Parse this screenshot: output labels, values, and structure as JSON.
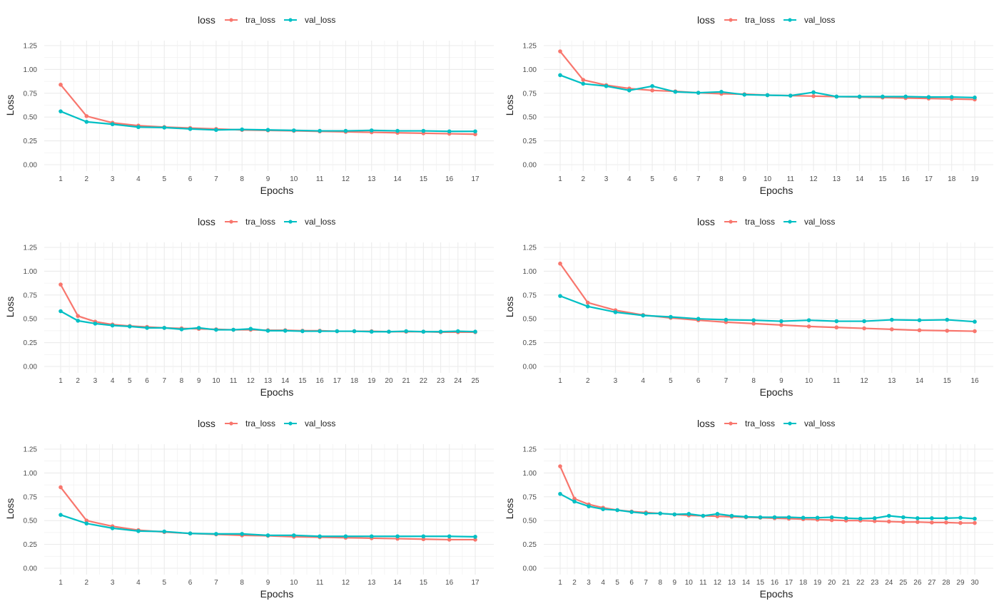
{
  "legend": {
    "title": "loss",
    "items": [
      {
        "label": "tra_loss",
        "color": "#F8766D"
      },
      {
        "label": "val_loss",
        "color": "#00BFC4"
      }
    ]
  },
  "chart_data": [
    {
      "type": "line",
      "xlabel": "Epochs",
      "ylabel": "Loss",
      "ylim": [
        0,
        1.25
      ],
      "yticks": [
        "0.00",
        "0.25",
        "0.50",
        "0.75",
        "1.00",
        "1.25"
      ],
      "grid": true,
      "legend_position": "top",
      "x": [
        1,
        2,
        3,
        4,
        5,
        6,
        7,
        8,
        9,
        10,
        11,
        12,
        13,
        14,
        15,
        16,
        17
      ],
      "series": [
        {
          "name": "tra_loss",
          "values": [
            0.84,
            0.51,
            0.44,
            0.41,
            0.395,
            0.385,
            0.375,
            0.365,
            0.36,
            0.355,
            0.35,
            0.345,
            0.34,
            0.335,
            0.33,
            0.325,
            0.32
          ]
        },
        {
          "name": "val_loss",
          "values": [
            0.56,
            0.45,
            0.425,
            0.395,
            0.39,
            0.375,
            0.365,
            0.37,
            0.365,
            0.36,
            0.355,
            0.355,
            0.36,
            0.355,
            0.355,
            0.35,
            0.35
          ]
        }
      ]
    },
    {
      "type": "line",
      "xlabel": "Epochs",
      "ylabel": "Loss",
      "ylim": [
        0,
        1.25
      ],
      "yticks": [
        "0.00",
        "0.25",
        "0.50",
        "0.75",
        "1.00",
        "1.25"
      ],
      "grid": true,
      "legend_position": "top",
      "x": [
        1,
        2,
        3,
        4,
        5,
        6,
        7,
        8,
        9,
        10,
        11,
        12,
        13,
        14,
        15,
        16,
        17,
        18,
        19
      ],
      "series": [
        {
          "name": "tra_loss",
          "values": [
            1.19,
            0.89,
            0.835,
            0.8,
            0.78,
            0.77,
            0.755,
            0.745,
            0.74,
            0.73,
            0.725,
            0.72,
            0.715,
            0.71,
            0.705,
            0.7,
            0.695,
            0.69,
            0.685
          ]
        },
        {
          "name": "val_loss",
          "values": [
            0.94,
            0.85,
            0.825,
            0.78,
            0.825,
            0.765,
            0.755,
            0.765,
            0.735,
            0.73,
            0.725,
            0.76,
            0.715,
            0.715,
            0.715,
            0.715,
            0.71,
            0.71,
            0.705
          ]
        }
      ]
    },
    {
      "type": "line",
      "xlabel": "Epochs",
      "ylabel": "Loss",
      "ylim": [
        0,
        1.25
      ],
      "yticks": [
        "0.00",
        "0.25",
        "0.50",
        "0.75",
        "1.00",
        "1.25"
      ],
      "grid": true,
      "legend_position": "top",
      "x": [
        1,
        2,
        3,
        4,
        5,
        6,
        7,
        8,
        9,
        10,
        11,
        12,
        13,
        14,
        15,
        16,
        17,
        18,
        19,
        20,
        21,
        22,
        23,
        24,
        25
      ],
      "series": [
        {
          "name": "tra_loss",
          "values": [
            0.86,
            0.53,
            0.47,
            0.44,
            0.425,
            0.415,
            0.405,
            0.4,
            0.395,
            0.39,
            0.385,
            0.385,
            0.38,
            0.38,
            0.375,
            0.375,
            0.37,
            0.37,
            0.37,
            0.365,
            0.365,
            0.365,
            0.36,
            0.36,
            0.36
          ]
        },
        {
          "name": "val_loss",
          "values": [
            0.58,
            0.48,
            0.45,
            0.43,
            0.42,
            0.405,
            0.405,
            0.39,
            0.405,
            0.385,
            0.385,
            0.395,
            0.375,
            0.375,
            0.37,
            0.37,
            0.37,
            0.37,
            0.365,
            0.365,
            0.37,
            0.365,
            0.365,
            0.37,
            0.365
          ]
        }
      ]
    },
    {
      "type": "line",
      "xlabel": "Epochs",
      "ylabel": "Loss",
      "ylim": [
        0,
        1.25
      ],
      "yticks": [
        "0.00",
        "0.25",
        "0.50",
        "0.75",
        "1.00",
        "1.25"
      ],
      "grid": true,
      "legend_position": "top",
      "x": [
        1,
        2,
        3,
        4,
        5,
        6,
        7,
        8,
        9,
        10,
        11,
        12,
        13,
        14,
        15,
        16
      ],
      "series": [
        {
          "name": "tra_loss",
          "values": [
            1.08,
            0.67,
            0.59,
            0.54,
            0.51,
            0.485,
            0.465,
            0.45,
            0.435,
            0.42,
            0.41,
            0.4,
            0.39,
            0.38,
            0.375,
            0.37
          ]
        },
        {
          "name": "val_loss",
          "values": [
            0.74,
            0.63,
            0.57,
            0.535,
            0.52,
            0.5,
            0.49,
            0.485,
            0.475,
            0.485,
            0.475,
            0.475,
            0.49,
            0.485,
            0.49,
            0.47
          ]
        }
      ]
    },
    {
      "type": "line",
      "xlabel": "Epochs",
      "ylabel": "Loss",
      "ylim": [
        0,
        1.25
      ],
      "yticks": [
        "0.00",
        "0.25",
        "0.50",
        "0.75",
        "1.00",
        "1.25"
      ],
      "grid": true,
      "legend_position": "top",
      "x": [
        1,
        2,
        3,
        4,
        5,
        6,
        7,
        8,
        9,
        10,
        11,
        12,
        13,
        14,
        15,
        16,
        17
      ],
      "series": [
        {
          "name": "tra_loss",
          "values": [
            0.85,
            0.5,
            0.44,
            0.4,
            0.38,
            0.365,
            0.355,
            0.345,
            0.34,
            0.33,
            0.325,
            0.32,
            0.315,
            0.31,
            0.305,
            0.3,
            0.3
          ]
        },
        {
          "name": "val_loss",
          "values": [
            0.56,
            0.47,
            0.42,
            0.39,
            0.385,
            0.365,
            0.36,
            0.36,
            0.345,
            0.345,
            0.335,
            0.335,
            0.335,
            0.335,
            0.335,
            0.335,
            0.33
          ]
        }
      ]
    },
    {
      "type": "line",
      "xlabel": "Epochs",
      "ylabel": "Loss",
      "ylim": [
        0,
        1.25
      ],
      "yticks": [
        "0.00",
        "0.25",
        "0.50",
        "0.75",
        "1.00",
        "1.25"
      ],
      "grid": true,
      "legend_position": "top",
      "x": [
        1,
        2,
        3,
        4,
        5,
        6,
        7,
        8,
        9,
        10,
        11,
        12,
        13,
        14,
        15,
        16,
        17,
        18,
        19,
        20,
        21,
        22,
        23,
        24,
        25,
        26,
        27,
        28,
        29,
        30
      ],
      "series": [
        {
          "name": "tra_loss",
          "values": [
            1.07,
            0.73,
            0.67,
            0.635,
            0.61,
            0.595,
            0.585,
            0.575,
            0.565,
            0.555,
            0.55,
            0.545,
            0.54,
            0.535,
            0.53,
            0.525,
            0.52,
            0.515,
            0.51,
            0.505,
            0.5,
            0.5,
            0.495,
            0.49,
            0.485,
            0.485,
            0.48,
            0.48,
            0.475,
            0.475
          ]
        },
        {
          "name": "val_loss",
          "values": [
            0.78,
            0.7,
            0.65,
            0.62,
            0.61,
            0.59,
            0.575,
            0.575,
            0.565,
            0.57,
            0.55,
            0.57,
            0.55,
            0.54,
            0.535,
            0.535,
            0.535,
            0.53,
            0.53,
            0.535,
            0.525,
            0.52,
            0.525,
            0.55,
            0.535,
            0.525,
            0.525,
            0.525,
            0.53,
            0.52
          ]
        }
      ]
    }
  ]
}
